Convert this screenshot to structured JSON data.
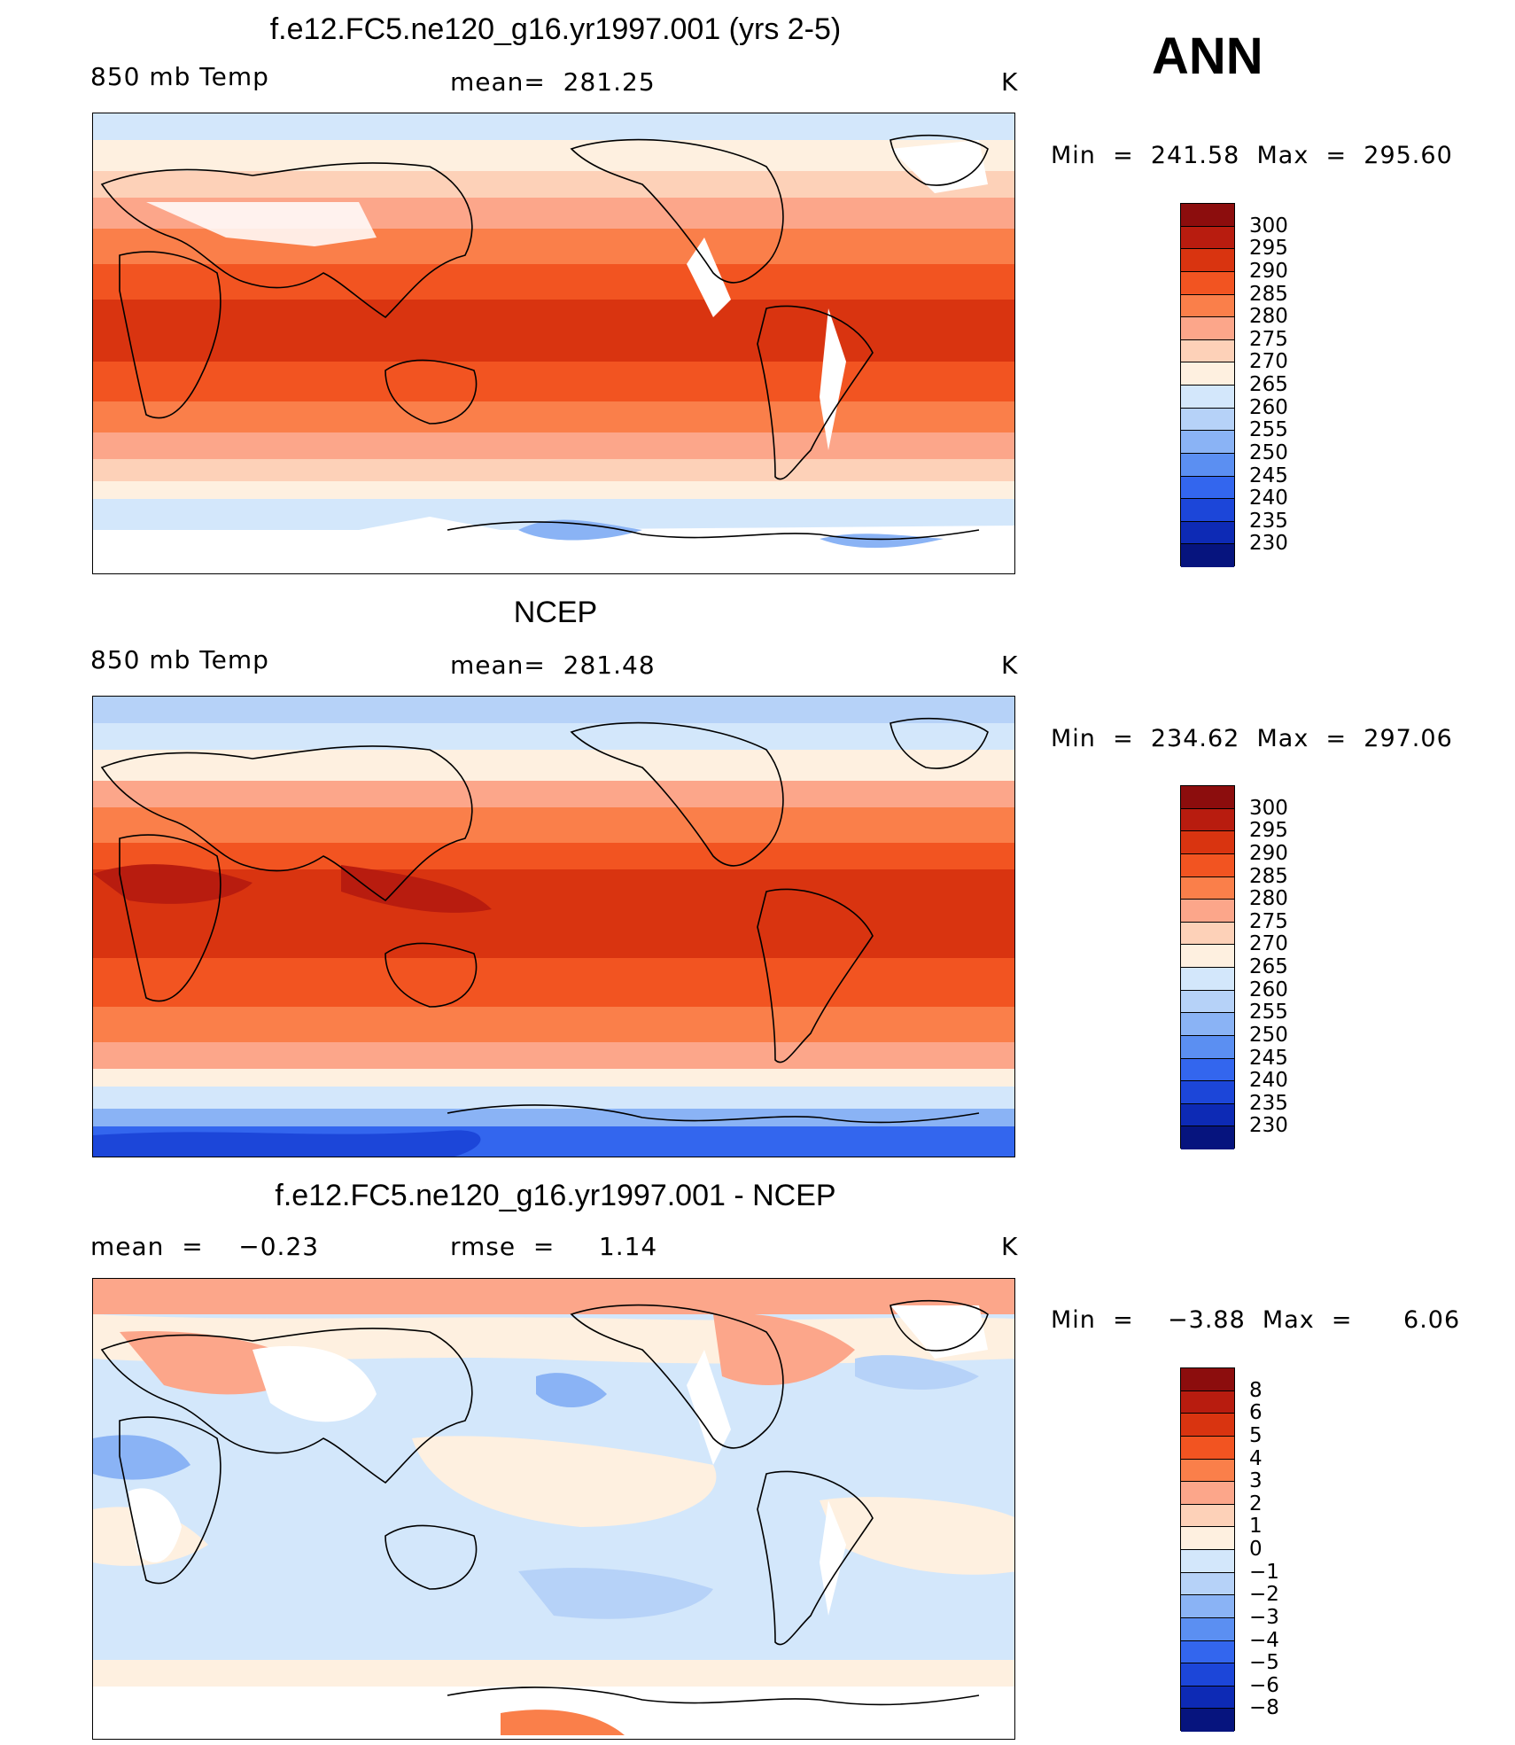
{
  "season": "ANN",
  "panels": [
    {
      "id": "model",
      "title": "f.e12.FC5.ne120_g16.yr1997.001 (yrs 2-5)",
      "variable": "850 mb Temp",
      "stat": "mean=  281.25",
      "units": "K",
      "minmax": "Min  =  241.58  Max  =  295.60",
      "colorbar": {
        "colors": [
          "#8c0d0d",
          "#b81c0f",
          "#d93410",
          "#f25421",
          "#fa7f4a",
          "#fca68a",
          "#fdd1b8",
          "#fef0e0",
          "#d3e7fb",
          "#b6d2f8",
          "#8ab3f5",
          "#5b8ff2",
          "#3366ee",
          "#1c46d9",
          "#0d2ab5",
          "#06147e"
        ],
        "labels": [
          "300",
          "295",
          "290",
          "285",
          "280",
          "275",
          "270",
          "265",
          "260",
          "255",
          "250",
          "245",
          "240",
          "235",
          "230"
        ]
      }
    },
    {
      "id": "obs",
      "title": "NCEP",
      "variable": "850 mb Temp",
      "stat": "mean=  281.48",
      "units": "K",
      "minmax": "Min  =  234.62  Max  =  297.06",
      "colorbar": {
        "colors": [
          "#8c0d0d",
          "#b81c0f",
          "#d93410",
          "#f25421",
          "#fa7f4a",
          "#fca68a",
          "#fdd1b8",
          "#fef0e0",
          "#d3e7fb",
          "#b6d2f8",
          "#8ab3f5",
          "#5b8ff2",
          "#3366ee",
          "#1c46d9",
          "#0d2ab5",
          "#06147e"
        ],
        "labels": [
          "300",
          "295",
          "290",
          "285",
          "280",
          "275",
          "270",
          "265",
          "260",
          "255",
          "250",
          "245",
          "240",
          "235",
          "230"
        ]
      }
    },
    {
      "id": "diff",
      "title": "f.e12.FC5.ne120_g16.yr1997.001 - NCEP",
      "variable": "mean  =    −0.23",
      "stat": "rmse  =     1.14",
      "units": "K",
      "minmax": "Min  =    −3.88  Max  =      6.06",
      "colorbar": {
        "colors": [
          "#8c0d0d",
          "#b81c0f",
          "#d93410",
          "#f25421",
          "#fa7f4a",
          "#fca68a",
          "#fdd1b8",
          "#fef0e0",
          "#d3e7fb",
          "#b6d2f8",
          "#8ab3f5",
          "#5b8ff2",
          "#3366ee",
          "#1c46d9",
          "#0d2ab5",
          "#06147e"
        ],
        "labels": [
          "8",
          "6",
          "5",
          "4",
          "3",
          "2",
          "1",
          "0",
          "−1",
          "−2",
          "−3",
          "−4",
          "−5",
          "−6",
          "−8"
        ]
      }
    }
  ]
}
